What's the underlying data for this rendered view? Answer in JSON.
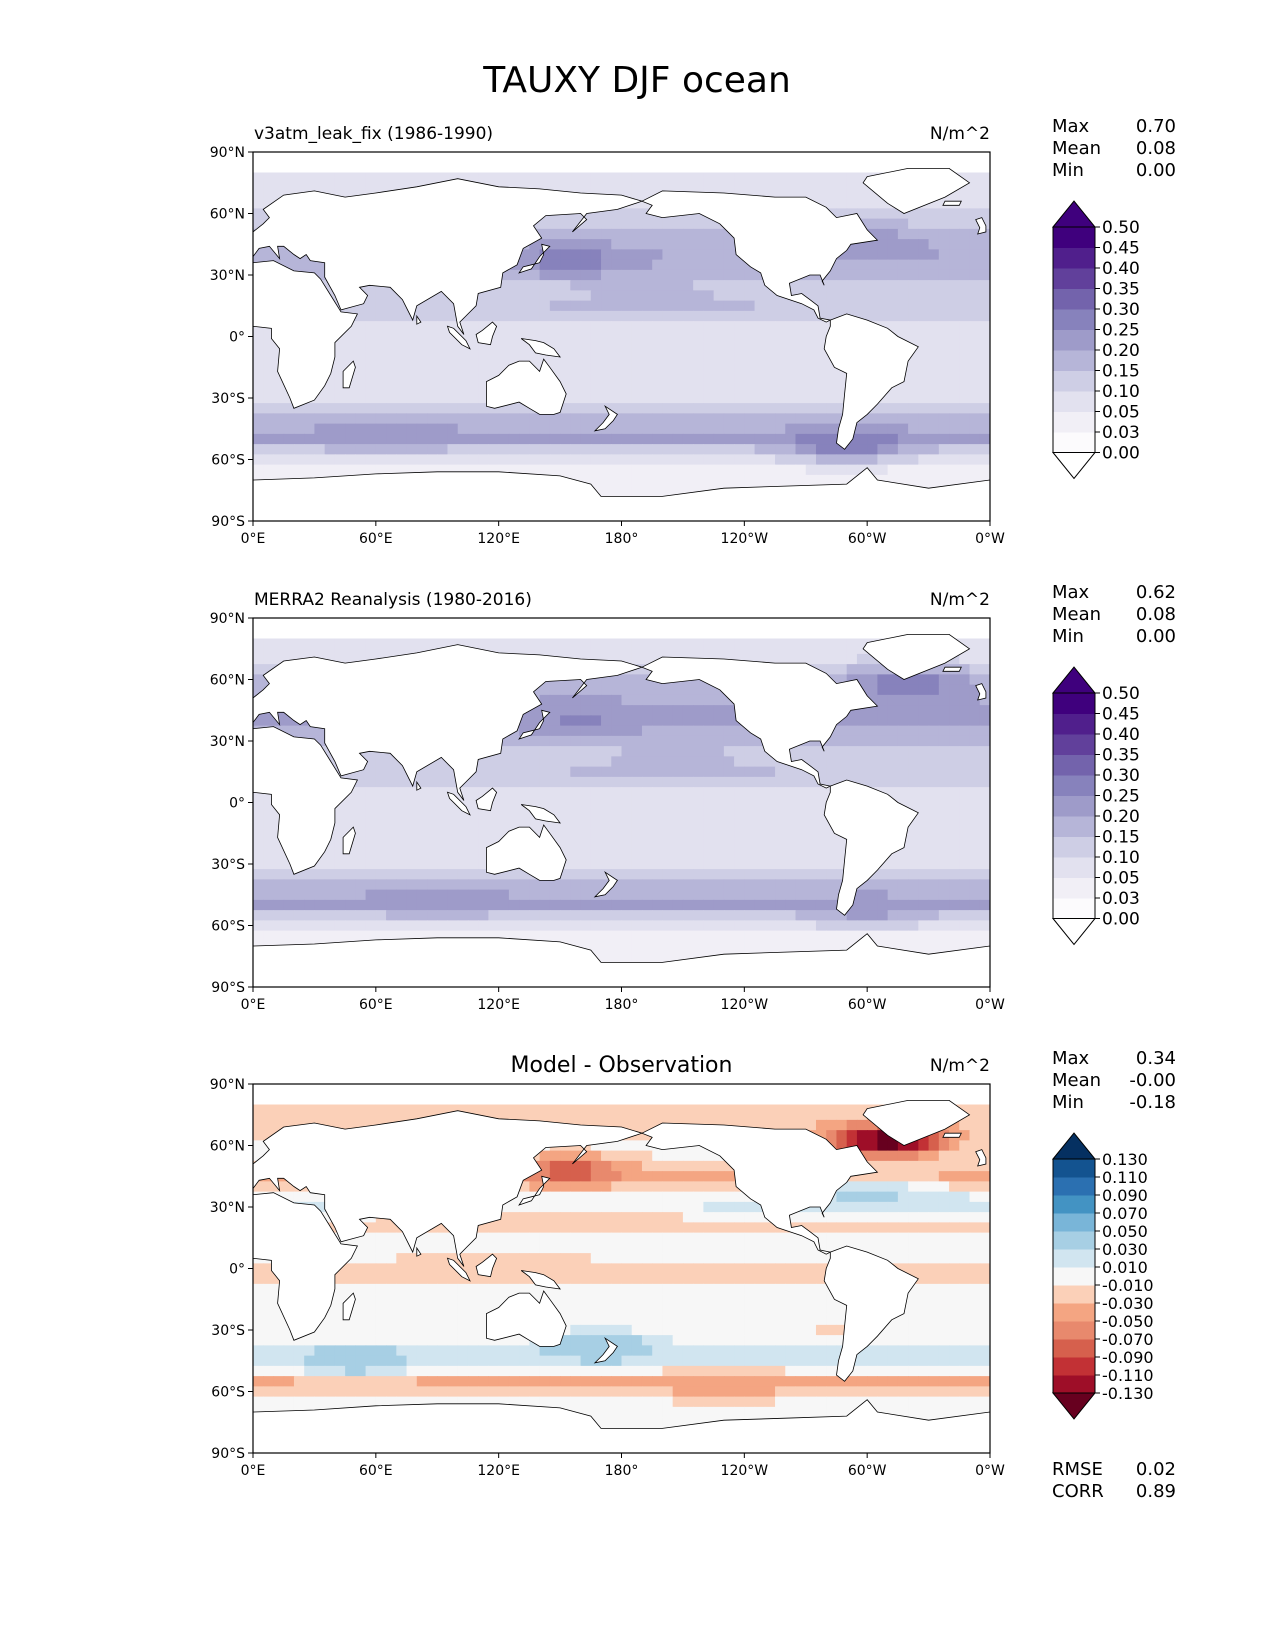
{
  "figure": {
    "title": "TAUXY DJF ocean"
  },
  "chart_data": [
    {
      "type": "heatmap",
      "projection": "PlateCarree",
      "title_left": "v3atm_leak_fix (1986-1990)",
      "title_center": "",
      "units": "N/m^2",
      "stats": [
        {
          "label": "Max",
          "value": "0.70"
        },
        {
          "label": "Mean",
          "value": "0.08"
        },
        {
          "label": "Min",
          "value": "0.00"
        }
      ],
      "yticks": [
        "90°N",
        "60°N",
        "30°N",
        "0°",
        "30°S",
        "60°S",
        "90°S"
      ],
      "xticks": [
        "0°E",
        "60°E",
        "120°E",
        "180°",
        "120°W",
        "60°W",
        "0°W"
      ],
      "colorbar": {
        "levels": [
          "0.00",
          "0.03",
          "0.05",
          "0.10",
          "0.15",
          "0.20",
          "0.25",
          "0.30",
          "0.35",
          "0.40",
          "0.45",
          "0.50"
        ],
        "colors": [
          "#fcfbfd",
          "#f1eff6",
          "#e2e1ef",
          "#cecee5",
          "#b6b5d8",
          "#9e9bc9",
          "#8782bc",
          "#7363ac",
          "#61409b",
          "#501f8c",
          "#3f007d"
        ],
        "extend_low": "#ffffff",
        "extend_high": "#3f007d"
      },
      "field": {
        "bands": [
          {
            "lat": 68,
            "value": 0.08
          },
          {
            "lat": 60,
            "value": 0.1
          },
          {
            "lat": 45,
            "value": 0.17
          },
          {
            "lat": 35,
            "value": 0.2
          },
          {
            "lat": 20,
            "value": 0.12
          },
          {
            "lat": 12,
            "value": 0.15
          },
          {
            "lat": 0,
            "value": 0.05
          },
          {
            "lat": -15,
            "value": 0.09
          },
          {
            "lat": -30,
            "value": 0.08
          },
          {
            "lat": -45,
            "value": 0.17
          },
          {
            "lat": -52,
            "value": 0.22
          },
          {
            "lat": -60,
            "value": 0.1
          },
          {
            "lat": -68,
            "value": 0.03
          }
        ],
        "features": [
          {
            "lon": 155,
            "lat": 35,
            "value": 0.28
          },
          {
            "lon": 300,
            "lat": 43,
            "value": 0.24
          },
          {
            "lon": 195,
            "lat": 15,
            "value": 0.2
          },
          {
            "lon": 65,
            "lat": -50,
            "value": 0.25
          },
          {
            "lon": 290,
            "lat": -55,
            "value": 0.3
          }
        ]
      }
    },
    {
      "type": "heatmap",
      "projection": "PlateCarree",
      "title_left": "MERRA2 Reanalysis (1980-2016)",
      "title_center": "",
      "units": "N/m^2",
      "stats": [
        {
          "label": "Max",
          "value": "0.62"
        },
        {
          "label": "Mean",
          "value": "0.08"
        },
        {
          "label": "Min",
          "value": "0.00"
        }
      ],
      "yticks": [
        "90°N",
        "60°N",
        "30°N",
        "0°",
        "30°S",
        "60°S",
        "90°S"
      ],
      "xticks": [
        "0°E",
        "60°E",
        "120°E",
        "180°",
        "120°W",
        "60°W",
        "0°W"
      ],
      "colorbar": {
        "levels": [
          "0.00",
          "0.03",
          "0.05",
          "0.10",
          "0.15",
          "0.20",
          "0.25",
          "0.30",
          "0.35",
          "0.40",
          "0.45",
          "0.50"
        ],
        "colors": [
          "#fcfbfd",
          "#f1eff6",
          "#e2e1ef",
          "#cecee5",
          "#b6b5d8",
          "#9e9bc9",
          "#8782bc",
          "#7363ac",
          "#61409b",
          "#501f8c",
          "#3f007d"
        ],
        "extend_low": "#ffffff",
        "extend_high": "#3f007d"
      },
      "field": {
        "bands": [
          {
            "lat": 68,
            "value": 0.09
          },
          {
            "lat": 60,
            "value": 0.14
          },
          {
            "lat": 45,
            "value": 0.2
          },
          {
            "lat": 35,
            "value": 0.2
          },
          {
            "lat": 20,
            "value": 0.13
          },
          {
            "lat": 12,
            "value": 0.15
          },
          {
            "lat": 0,
            "value": 0.05
          },
          {
            "lat": -15,
            "value": 0.09
          },
          {
            "lat": -30,
            "value": 0.08
          },
          {
            "lat": -45,
            "value": 0.17
          },
          {
            "lat": -52,
            "value": 0.22
          },
          {
            "lat": -60,
            "value": 0.09
          },
          {
            "lat": -68,
            "value": 0.03
          }
        ],
        "features": [
          {
            "lon": 160,
            "lat": 38,
            "value": 0.26
          },
          {
            "lon": 320,
            "lat": 55,
            "value": 0.3
          },
          {
            "lon": 205,
            "lat": 15,
            "value": 0.18
          },
          {
            "lon": 90,
            "lat": -50,
            "value": 0.24
          },
          {
            "lon": 300,
            "lat": -55,
            "value": 0.22
          }
        ]
      }
    },
    {
      "type": "heatmap",
      "projection": "PlateCarree",
      "title_left": "",
      "title_center": "Model - Observation",
      "units": "N/m^2",
      "stats": [
        {
          "label": "Max",
          "value": "0.34"
        },
        {
          "label": "Mean",
          "value": "-0.00"
        },
        {
          "label": "Min",
          "value": "-0.18"
        }
      ],
      "yticks": [
        "90°N",
        "60°N",
        "30°N",
        "0°",
        "30°S",
        "60°S",
        "90°S"
      ],
      "xticks": [
        "0°E",
        "60°E",
        "120°E",
        "180°",
        "120°W",
        "60°W",
        "0°W"
      ],
      "colorbar": {
        "levels": [
          "-0.130",
          "-0.110",
          "-0.090",
          "-0.070",
          "-0.050",
          "-0.030",
          "-0.010",
          "0.010",
          "0.030",
          "0.050",
          "0.070",
          "0.090",
          "0.110",
          "0.130"
        ],
        "colors": [
          "#9e0e28",
          "#c23135",
          "#d6604d",
          "#e8896d",
          "#f4a582",
          "#fbd0b8",
          "#f7f7f7",
          "#d1e5f0",
          "#a7cfe4",
          "#79b5d8",
          "#4393c3",
          "#2b70b1",
          "#135390"
        ],
        "extend_low": "#67001f",
        "extend_high": "#053061"
      },
      "field": {
        "bands": [
          {
            "lat": 68,
            "value": -0.02
          },
          {
            "lat": 55,
            "value": 0.0
          },
          {
            "lat": 42,
            "value": -0.035
          },
          {
            "lat": 30,
            "value": 0.02
          },
          {
            "lat": 20,
            "value": -0.02
          },
          {
            "lat": 10,
            "value": 0.0
          },
          {
            "lat": -5,
            "value": -0.02
          },
          {
            "lat": -20,
            "value": 0.0
          },
          {
            "lat": -35,
            "value": -0.012
          },
          {
            "lat": -45,
            "value": 0.03
          },
          {
            "lat": -52,
            "value": 0.0
          },
          {
            "lat": -57,
            "value": -0.04
          },
          {
            "lat": -65,
            "value": 0.0
          }
        ],
        "features": [
          {
            "lon": 155,
            "lat": 45,
            "value": -0.08
          },
          {
            "lon": 310,
            "lat": 60,
            "value": -0.15
          },
          {
            "lon": 300,
            "lat": 33,
            "value": 0.04
          },
          {
            "lon": 170,
            "lat": -40,
            "value": 0.05
          },
          {
            "lon": 230,
            "lat": -60,
            "value": -0.05
          },
          {
            "lon": 50,
            "lat": -48,
            "value": 0.045
          }
        ]
      },
      "metrics": [
        {
          "label": "RMSE",
          "value": "0.02"
        },
        {
          "label": "CORR",
          "value": "0.89"
        }
      ]
    }
  ]
}
